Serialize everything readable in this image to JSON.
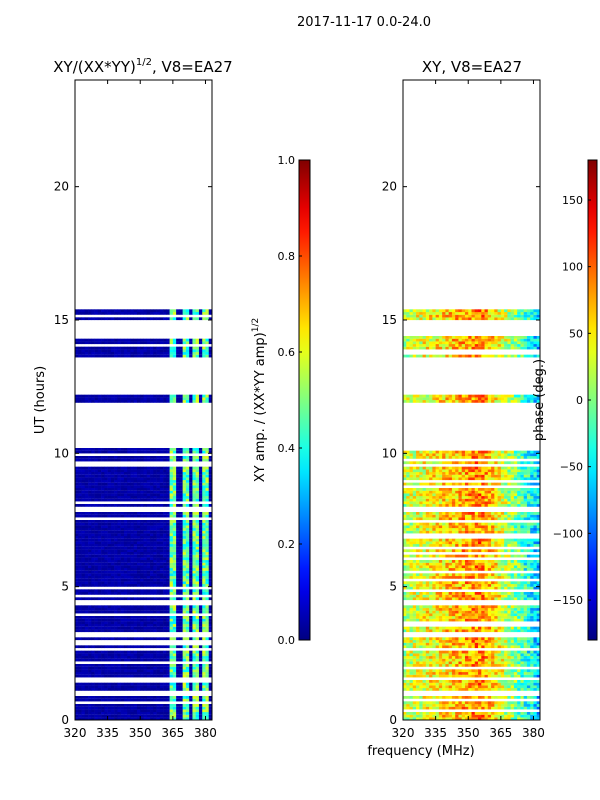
{
  "figure_title": "2017-11-17 0.0-24.0",
  "colors": {
    "background": "#ffffff",
    "axis": "#000000",
    "jet_low": "#00007f",
    "jet_high": "#7f0000"
  },
  "chart_data": [
    {
      "type": "heatmap",
      "title_prefix": "XY/(XX*YY)",
      "title_exponent": "1/2",
      "title_suffix": ", V8=EA27",
      "xlabel": "",
      "ylabel": "UT (hours)",
      "xlim": [
        320,
        383
      ],
      "ylim": [
        0,
        24
      ],
      "xticks": [
        320,
        335,
        350,
        365,
        380
      ],
      "yticks": [
        0,
        5,
        10,
        15,
        20
      ],
      "colorbar": {
        "label_prefix": "XY amp. / (XX*YY amp)",
        "label_exponent": "1/2",
        "range": [
          0.0,
          1.0
        ],
        "ticks": [
          "0.0",
          "0.2",
          "0.4",
          "0.6",
          "0.8",
          "1.0"
        ],
        "colormap": "jet"
      },
      "data_hour_bands": [
        [
          0.0,
          0.9
        ],
        [
          1.1,
          1.5
        ],
        [
          1.6,
          2.6
        ],
        [
          2.7,
          3.1
        ],
        [
          3.3,
          4.3
        ],
        [
          4.5,
          7.8
        ],
        [
          8.0,
          9.5
        ],
        [
          9.6,
          10.2
        ],
        [
          11.9,
          12.2
        ],
        [
          13.6,
          14.4
        ],
        [
          14.9,
          15.4
        ]
      ],
      "bright_channel_ranges_mhz": [
        [
          363,
          366
        ],
        [
          369,
          372
        ],
        [
          374,
          377
        ],
        [
          378,
          381
        ]
      ],
      "typical_amplitude_background": 0.02,
      "typical_amplitude_bright": [
        0.35,
        0.6
      ]
    },
    {
      "type": "heatmap",
      "title": "XY, V8=EA27",
      "xlabel": "frequency (MHz)",
      "ylabel": "",
      "xlim": [
        320,
        383
      ],
      "ylim": [
        0,
        24
      ],
      "xticks": [
        320,
        335,
        350,
        365,
        380
      ],
      "yticks": [
        0,
        5,
        10,
        15,
        20
      ],
      "colorbar": {
        "label": "phase (deg.)",
        "range": [
          -180,
          180
        ],
        "ticks": [
          "150",
          "100",
          "50",
          "0",
          "−50",
          "−100",
          "−150"
        ],
        "tick_values": [
          150,
          100,
          50,
          0,
          -50,
          -100,
          -150
        ],
        "colormap": "jet"
      },
      "data_hour_bands": [
        [
          0.0,
          0.9
        ],
        [
          1.1,
          1.5
        ],
        [
          1.6,
          2.6
        ],
        [
          2.7,
          3.1
        ],
        [
          3.3,
          4.3
        ],
        [
          4.5,
          7.8
        ],
        [
          8.0,
          9.5
        ],
        [
          9.6,
          10.2
        ],
        [
          11.9,
          12.2
        ],
        [
          13.6,
          14.4
        ],
        [
          14.9,
          15.4
        ]
      ],
      "phase_trend_deg": {
        "at_320_mhz": 20,
        "at_355_mhz": 90,
        "at_383_mhz": -70
      }
    }
  ]
}
